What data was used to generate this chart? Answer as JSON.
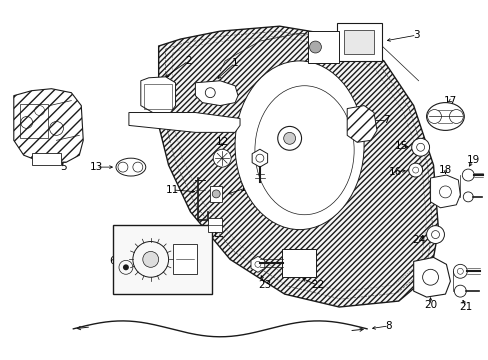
{
  "bg_color": "#ffffff",
  "fig_width": 4.89,
  "fig_height": 3.6,
  "dpi": 100,
  "lc": "#1a1a1a",
  "lw_main": 0.8,
  "lw_thin": 0.5,
  "font_size": 7.5
}
